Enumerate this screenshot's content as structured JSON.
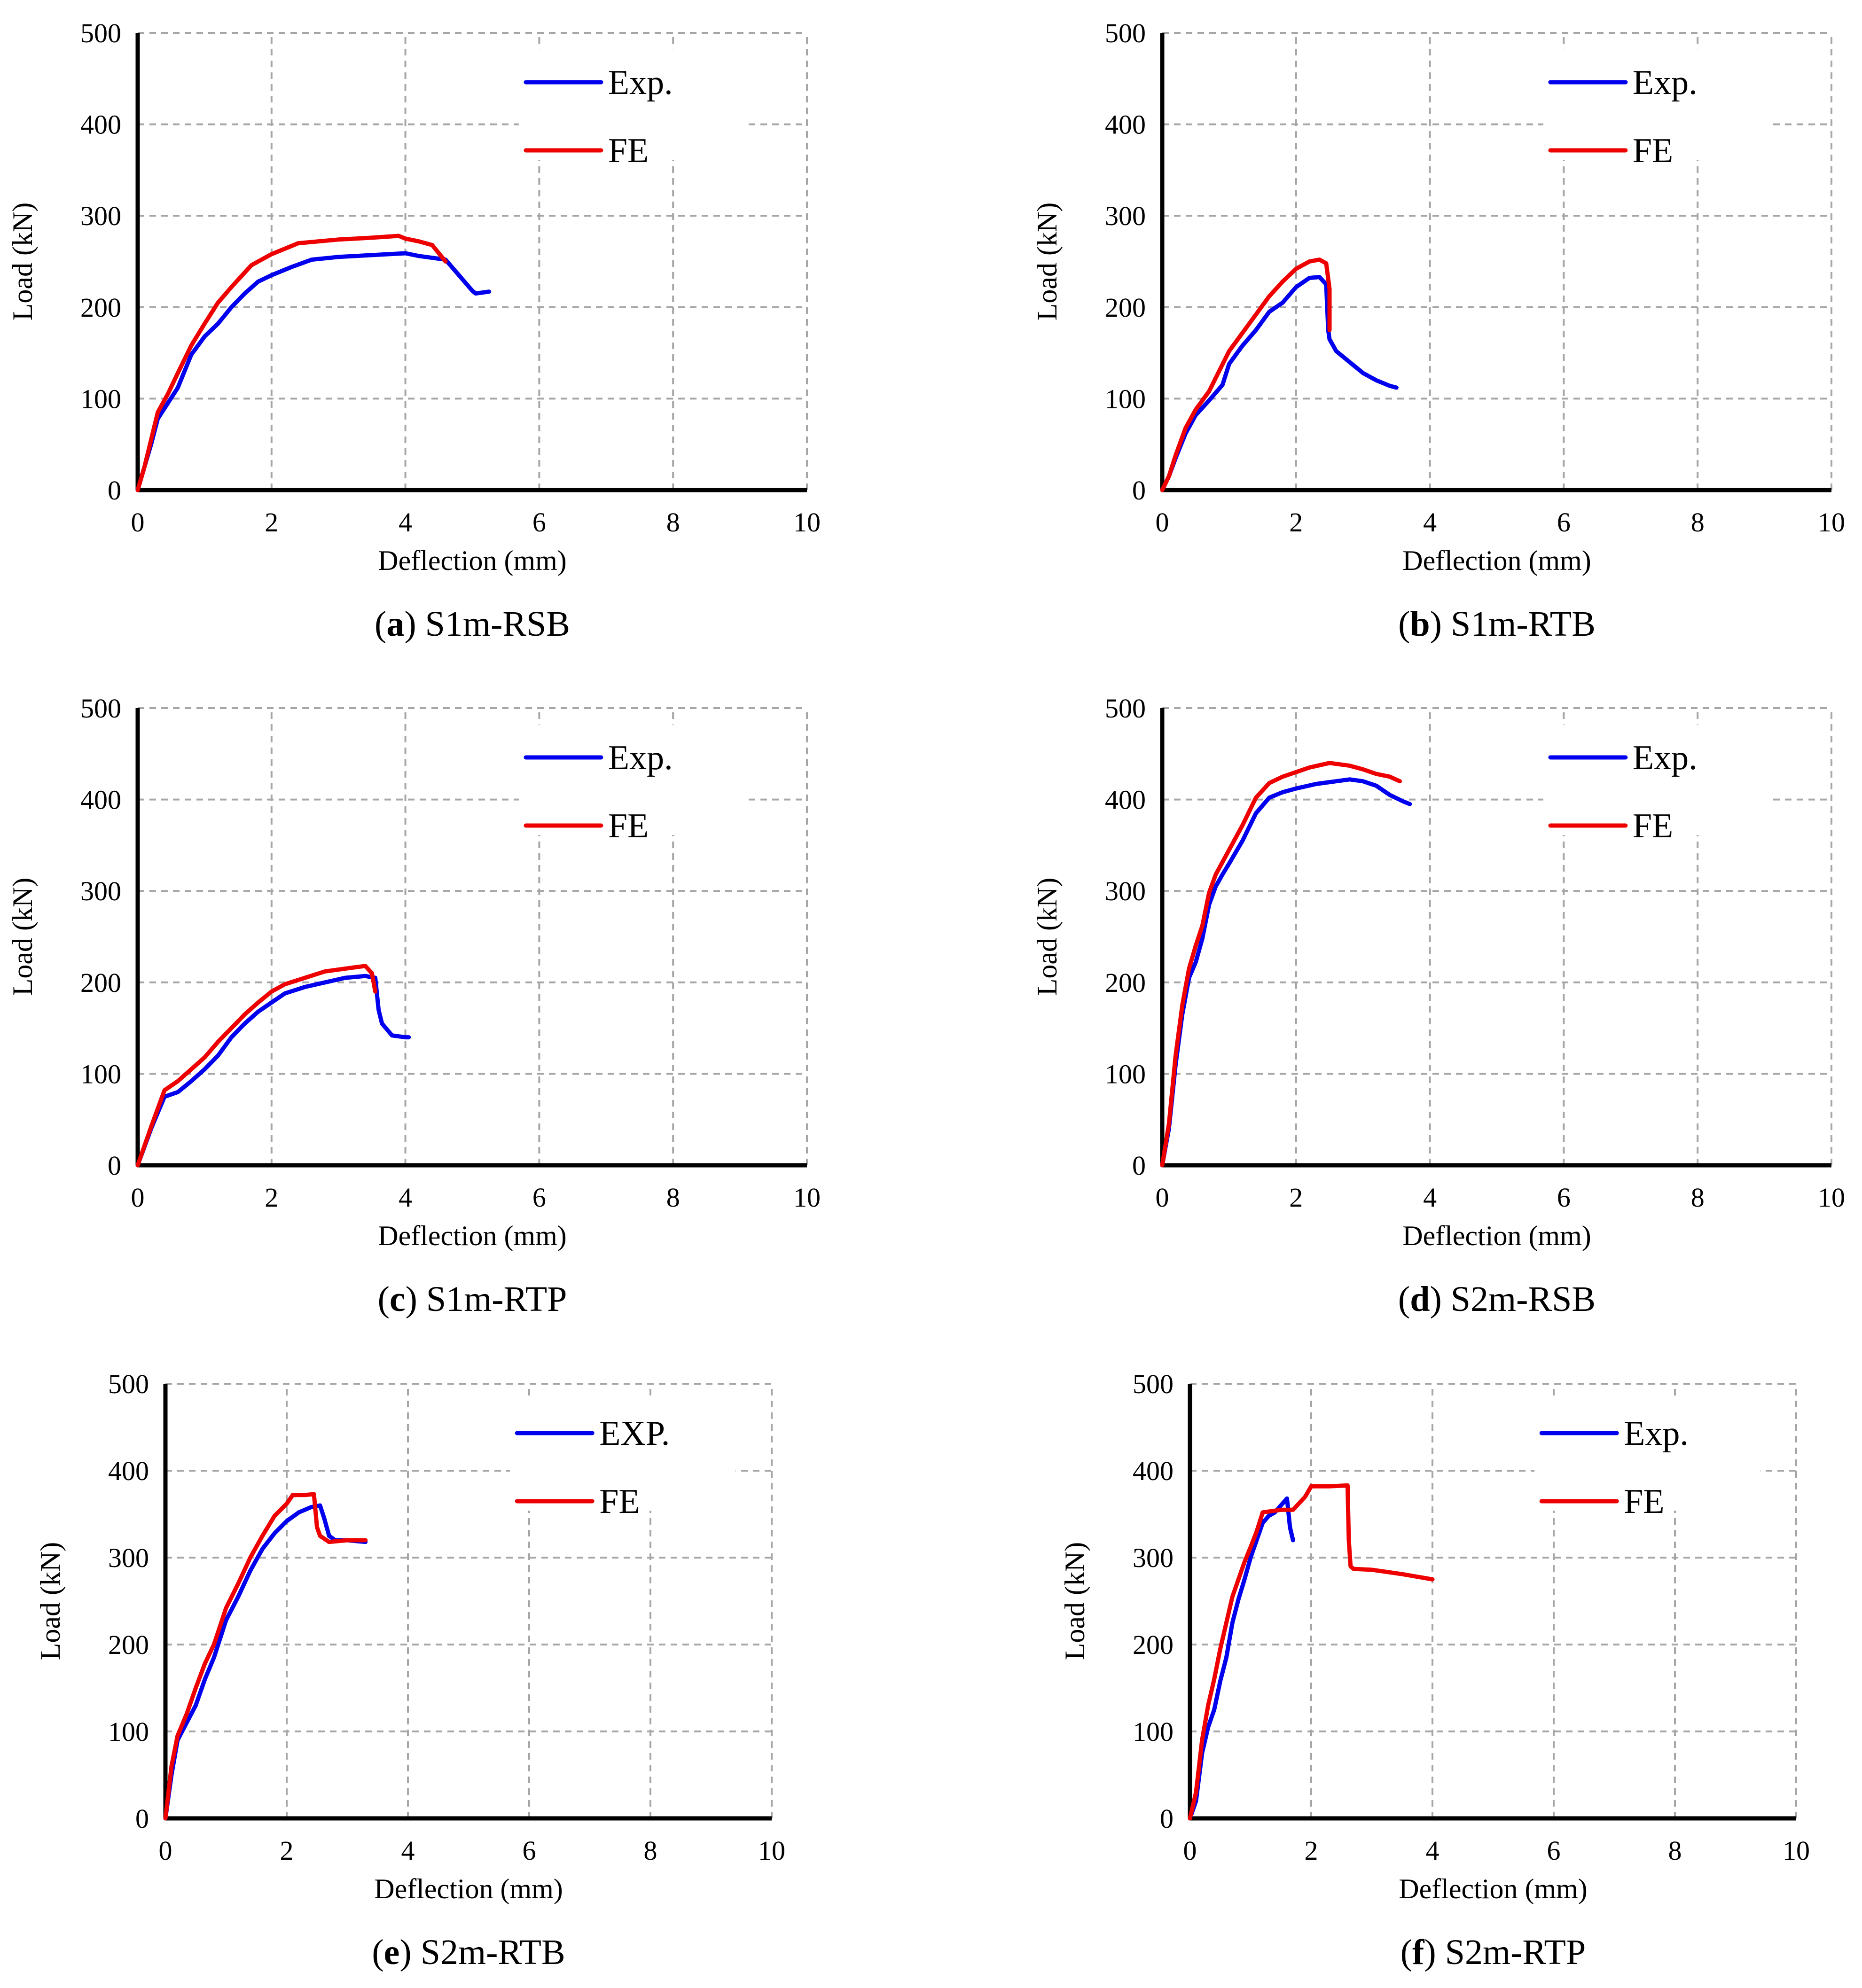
{
  "figure": {
    "axis_labels": {
      "xlabel": "Deflection (mm)",
      "ylabel": "Load (kN)"
    },
    "colors": {
      "exp": "#0000ee",
      "fe": "#ee0000"
    }
  },
  "chart_data": [
    {
      "type": "line",
      "caption_letter": "a",
      "caption_name": "S1m-RSB",
      "xlabel": "Deflection (mm)",
      "ylabel": "Load (kN)",
      "xlim": [
        0,
        10
      ],
      "ylim": [
        0,
        500
      ],
      "xticks": [
        "0",
        "2",
        "4",
        "6",
        "8",
        "10"
      ],
      "yticks": [
        "0",
        "100",
        "200",
        "300",
        "400",
        "500"
      ],
      "legend_position": "top-right",
      "series": [
        {
          "name": "Exp.",
          "color": "#0000ee",
          "x": [
            0,
            0.1,
            0.2,
            0.3,
            0.45,
            0.6,
            0.8,
            1.0,
            1.2,
            1.4,
            1.6,
            1.8,
            2.0,
            2.3,
            2.6,
            3.0,
            3.5,
            4.0,
            4.2,
            4.6,
            4.8,
            5.0,
            5.05,
            5.25
          ],
          "y": [
            0,
            25,
            50,
            78,
            95,
            112,
            148,
            168,
            182,
            200,
            215,
            228,
            235,
            244,
            252,
            255,
            257,
            259,
            256,
            252,
            235,
            218,
            215,
            217
          ]
        },
        {
          "name": "FE",
          "color": "#ee0000",
          "x": [
            0,
            0.1,
            0.2,
            0.3,
            0.45,
            0.6,
            0.8,
            1.0,
            1.2,
            1.4,
            1.7,
            2.0,
            2.4,
            3.0,
            3.5,
            3.9,
            4.0,
            4.2,
            4.4,
            4.6
          ],
          "y": [
            0,
            25,
            55,
            85,
            105,
            128,
            158,
            182,
            205,
            222,
            246,
            258,
            270,
            274,
            276,
            278,
            275,
            272,
            268,
            250
          ]
        }
      ]
    },
    {
      "type": "line",
      "caption_letter": "b",
      "caption_name": "S1m-RTB",
      "xlabel": "Deflection (mm)",
      "ylabel": "Load (kN)",
      "xlim": [
        0,
        10
      ],
      "ylim": [
        0,
        500
      ],
      "xticks": [
        "0",
        "2",
        "4",
        "6",
        "8",
        "10"
      ],
      "yticks": [
        "0",
        "100",
        "200",
        "300",
        "400",
        "500"
      ],
      "legend_position": "top-right",
      "series": [
        {
          "name": "Exp.",
          "color": "#0000ee",
          "x": [
            0,
            0.1,
            0.2,
            0.35,
            0.5,
            0.7,
            0.9,
            1.0,
            1.2,
            1.4,
            1.6,
            1.8,
            2.0,
            2.2,
            2.35,
            2.45,
            2.48,
            2.5,
            2.6,
            2.8,
            3.0,
            3.2,
            3.4,
            3.5
          ],
          "y": [
            0,
            15,
            35,
            62,
            82,
            98,
            115,
            138,
            158,
            175,
            195,
            205,
            222,
            232,
            233,
            225,
            175,
            165,
            152,
            140,
            128,
            120,
            114,
            112
          ]
        },
        {
          "name": "FE",
          "color": "#ee0000",
          "x": [
            0,
            0.1,
            0.2,
            0.35,
            0.5,
            0.7,
            0.85,
            1.0,
            1.2,
            1.4,
            1.6,
            1.8,
            2.0,
            2.2,
            2.35,
            2.45,
            2.5,
            2.5
          ],
          "y": [
            0,
            15,
            38,
            68,
            88,
            108,
            130,
            152,
            172,
            192,
            212,
            228,
            242,
            250,
            252,
            248,
            220,
            175
          ]
        }
      ]
    },
    {
      "type": "line",
      "caption_letter": "c",
      "caption_name": "S1m-RTP",
      "xlabel": "Deflection (mm)",
      "ylabel": "Load (kN)",
      "xlim": [
        0,
        10
      ],
      "ylim": [
        0,
        500
      ],
      "xticks": [
        "0",
        "2",
        "4",
        "6",
        "8",
        "10"
      ],
      "yticks": [
        "0",
        "100",
        "200",
        "300",
        "400",
        "500"
      ],
      "legend_position": "top-right",
      "series": [
        {
          "name": "Exp.",
          "color": "#0000ee",
          "x": [
            0,
            0.2,
            0.4,
            0.6,
            0.8,
            1.0,
            1.2,
            1.4,
            1.6,
            1.8,
            2.0,
            2.2,
            2.5,
            2.8,
            3.1,
            3.4,
            3.55,
            3.6,
            3.65,
            3.8,
            4.0,
            4.05
          ],
          "y": [
            0,
            40,
            75,
            80,
            92,
            105,
            120,
            140,
            155,
            168,
            178,
            188,
            195,
            200,
            205,
            207,
            205,
            170,
            155,
            142,
            140,
            140
          ]
        },
        {
          "name": "FE",
          "color": "#ee0000",
          "x": [
            0,
            0.2,
            0.4,
            0.6,
            0.8,
            1.0,
            1.2,
            1.4,
            1.6,
            1.8,
            2.0,
            2.2,
            2.5,
            2.8,
            3.1,
            3.4,
            3.5,
            3.55
          ],
          "y": [
            0,
            42,
            82,
            92,
            105,
            118,
            135,
            150,
            165,
            178,
            190,
            198,
            205,
            212,
            215,
            218,
            210,
            190
          ]
        }
      ]
    },
    {
      "type": "line",
      "caption_letter": "d",
      "caption_name": "S2m-RSB",
      "xlabel": "Deflection (mm)",
      "ylabel": "Load (kN)",
      "xlim": [
        0,
        10
      ],
      "ylim": [
        0,
        500
      ],
      "xticks": [
        "0",
        "2",
        "4",
        "6",
        "8",
        "10"
      ],
      "yticks": [
        "0",
        "100",
        "200",
        "300",
        "400",
        "500"
      ],
      "legend_position": "top-right",
      "series": [
        {
          "name": "Exp.",
          "color": "#0000ee",
          "x": [
            0,
            0.1,
            0.2,
            0.3,
            0.4,
            0.5,
            0.6,
            0.7,
            0.8,
            0.9,
            1.0,
            1.2,
            1.4,
            1.6,
            1.8,
            2.0,
            2.3,
            2.6,
            2.8,
            3.0,
            3.2,
            3.4,
            3.6,
            3.7
          ],
          "y": [
            0,
            40,
            110,
            165,
            205,
            222,
            248,
            285,
            305,
            318,
            330,
            355,
            385,
            402,
            408,
            412,
            417,
            420,
            422,
            420,
            415,
            405,
            398,
            395
          ]
        },
        {
          "name": "FE",
          "color": "#ee0000",
          "x": [
            0,
            0.1,
            0.2,
            0.3,
            0.4,
            0.5,
            0.6,
            0.7,
            0.8,
            1.0,
            1.2,
            1.4,
            1.6,
            1.8,
            2.0,
            2.2,
            2.5,
            2.8,
            3.0,
            3.2,
            3.4,
            3.55
          ],
          "y": [
            0,
            45,
            120,
            175,
            215,
            240,
            262,
            298,
            318,
            345,
            372,
            402,
            418,
            425,
            430,
            435,
            440,
            437,
            433,
            428,
            425,
            420
          ]
        }
      ]
    },
    {
      "type": "line",
      "caption_letter": "e",
      "caption_name": "S2m-RTB",
      "xlabel": "Deflection (mm)",
      "ylabel": "Load (kN)",
      "xlim": [
        0,
        10
      ],
      "ylim": [
        0,
        500
      ],
      "xticks": [
        "0",
        "2",
        "4",
        "6",
        "8",
        "10"
      ],
      "yticks": [
        "0",
        "100",
        "200",
        "300",
        "400",
        "500"
      ],
      "legend_position": "top-right",
      "series": [
        {
          "name": "EXP.",
          "color": "#0000ee",
          "x": [
            0,
            0.1,
            0.2,
            0.35,
            0.5,
            0.65,
            0.8,
            1.0,
            1.2,
            1.4,
            1.6,
            1.8,
            2.0,
            2.2,
            2.4,
            2.55,
            2.62,
            2.7,
            2.8,
            3.0,
            3.3
          ],
          "y": [
            0,
            50,
            90,
            110,
            130,
            160,
            185,
            228,
            255,
            285,
            310,
            328,
            342,
            352,
            358,
            360,
            345,
            325,
            320,
            320,
            318
          ]
        },
        {
          "name": "FE",
          "color": "#ee0000",
          "x": [
            0,
            0.1,
            0.2,
            0.35,
            0.5,
            0.65,
            0.8,
            1.0,
            1.2,
            1.4,
            1.6,
            1.8,
            2.0,
            2.1,
            2.3,
            2.45,
            2.5,
            2.55,
            2.7,
            3.0,
            3.3
          ],
          "y": [
            0,
            60,
            95,
            120,
            150,
            178,
            200,
            242,
            270,
            300,
            325,
            348,
            362,
            372,
            372,
            373,
            335,
            325,
            318,
            320,
            320
          ]
        }
      ]
    },
    {
      "type": "line",
      "caption_letter": "f",
      "caption_name": "S2m-RTP",
      "xlabel": "Deflection (mm)",
      "ylabel": "Load (kN)",
      "xlim": [
        0,
        10
      ],
      "ylim": [
        0,
        500
      ],
      "xticks": [
        "0",
        "2",
        "4",
        "6",
        "8",
        "10"
      ],
      "yticks": [
        "0",
        "100",
        "200",
        "300",
        "400",
        "500"
      ],
      "legend_position": "top-right",
      "series": [
        {
          "name": "Exp.",
          "color": "#0000ee",
          "x": [
            0,
            0.1,
            0.2,
            0.3,
            0.4,
            0.5,
            0.6,
            0.7,
            0.8,
            0.9,
            1.0,
            1.1,
            1.2,
            1.3,
            1.4,
            1.5,
            1.6,
            1.62,
            1.65,
            1.7
          ],
          "y": [
            0,
            20,
            75,
            105,
            125,
            158,
            185,
            225,
            252,
            275,
            300,
            320,
            340,
            348,
            352,
            360,
            368,
            355,
            335,
            320
          ]
        },
        {
          "name": "FE",
          "color": "#ee0000",
          "x": [
            0,
            0.1,
            0.2,
            0.3,
            0.4,
            0.5,
            0.6,
            0.7,
            0.8,
            0.9,
            1.0,
            1.1,
            1.2,
            1.5,
            1.7,
            1.9,
            2.0,
            2.3,
            2.6,
            2.62,
            2.65,
            2.7,
            3.0,
            3.5,
            4.0
          ],
          "y": [
            0,
            30,
            90,
            130,
            160,
            195,
            225,
            255,
            275,
            295,
            312,
            330,
            352,
            355,
            355,
            370,
            382,
            382,
            383,
            320,
            290,
            287,
            286,
            281,
            275
          ]
        }
      ]
    }
  ]
}
